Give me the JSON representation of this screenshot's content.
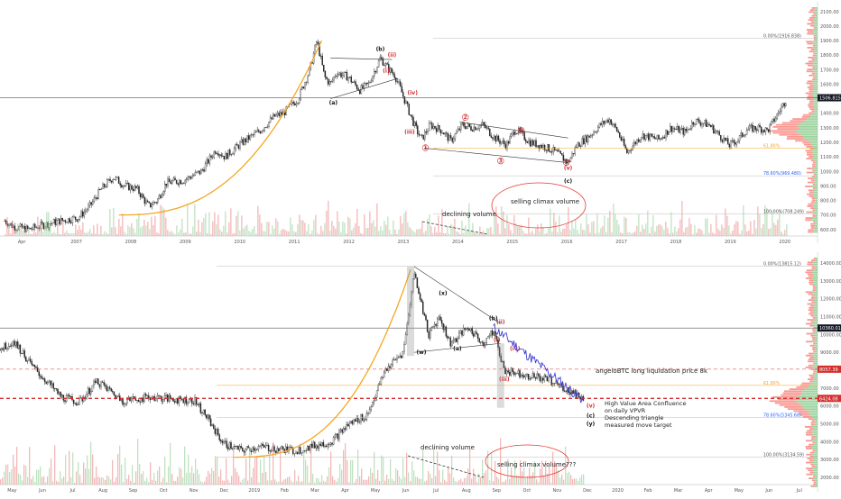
{
  "colors": {
    "up": "#26a69a",
    "down": "#ef5350",
    "candle": "#222222",
    "ma": "#f5a623",
    "projection": "#3f3fd6",
    "level_line": "#d32f2f",
    "price_tag": "#131722",
    "price_tag_red": "#d32f2f",
    "fib": "#2962ff",
    "fib_orange": "#f5a623",
    "ellipse": "#e53935",
    "vp_red": "#f44336",
    "vp_green": "#4caf50"
  },
  "chart_data": [
    {
      "type": "candlestick",
      "asset": "Gold",
      "x_axis": {
        "labels": [
          "Apr",
          "2007",
          "2008",
          "2009",
          "2010",
          "2011",
          "2012",
          "2013",
          "2014",
          "2015",
          "2016",
          "2017",
          "2018",
          "2019",
          "2020"
        ],
        "range": [
          2006.27,
          2020.2
        ]
      },
      "y_axis": {
        "labels": [
          "600.00",
          "700.00",
          "800.00",
          "900.00",
          "1000.00",
          "1100.00",
          "1200.00",
          "1300.00",
          "1400.00",
          "1500.00",
          "1600.00",
          "1700.00",
          "1800.00",
          "1900.00",
          "2000.00",
          "2100.00"
        ],
        "range": [
          580,
          2130
        ]
      },
      "current_price": "1506.815",
      "fib_levels": [
        {
          "label": "0.00%(1916.838)",
          "value": 1916.838
        },
        {
          "label": "61.80%",
          "value": 1160
        },
        {
          "label": "78.60%(969.480)",
          "value": 969.48
        },
        {
          "label": "100.00%(708.249)",
          "value": 708.249
        }
      ],
      "path": [
        [
          2006.35,
          660
        ],
        [
          2006.5,
          620
        ],
        [
          2006.75,
          600
        ],
        [
          2007.0,
          630
        ],
        [
          2007.3,
          660
        ],
        [
          2007.6,
          680
        ],
        [
          2007.8,
          760
        ],
        [
          2008.0,
          880
        ],
        [
          2008.2,
          960
        ],
        [
          2008.4,
          900
        ],
        [
          2008.6,
          880
        ],
        [
          2008.8,
          760
        ],
        [
          2008.95,
          800
        ],
        [
          2009.1,
          920
        ],
        [
          2009.4,
          940
        ],
        [
          2009.7,
          1000
        ],
        [
          2009.95,
          1150
        ],
        [
          2010.1,
          1100
        ],
        [
          2010.4,
          1200
        ],
        [
          2010.7,
          1280
        ],
        [
          2010.95,
          1380
        ],
        [
          2011.1,
          1400
        ],
        [
          2011.35,
          1500
        ],
        [
          2011.55,
          1700
        ],
        [
          2011.67,
          1900
        ],
        [
          2011.8,
          1650
        ],
        [
          2011.9,
          1600
        ],
        [
          2012.0,
          1680
        ],
        [
          2012.2,
          1650
        ],
        [
          2012.4,
          1560
        ],
        [
          2012.55,
          1600
        ],
        [
          2012.75,
          1780
        ],
        [
          2012.9,
          1700
        ],
        [
          2013.0,
          1660
        ],
        [
          2013.1,
          1560
        ],
        [
          2013.25,
          1400
        ],
        [
          2013.35,
          1300
        ],
        [
          2013.45,
          1220
        ],
        [
          2013.6,
          1320
        ],
        [
          2013.8,
          1280
        ],
        [
          2013.95,
          1210
        ],
        [
          2014.15,
          1320
        ],
        [
          2014.3,
          1300
        ],
        [
          2014.5,
          1320
        ],
        [
          2014.7,
          1230
        ],
        [
          2014.9,
          1180
        ],
        [
          2015.05,
          1290
        ],
        [
          2015.3,
          1200
        ],
        [
          2015.55,
          1170
        ],
        [
          2015.75,
          1130
        ],
        [
          2015.95,
          1060
        ],
        [
          2016.1,
          1180
        ],
        [
          2016.3,
          1240
        ],
        [
          2016.5,
          1320
        ],
        [
          2016.65,
          1360
        ],
        [
          2016.8,
          1270
        ],
        [
          2016.95,
          1130
        ],
        [
          2017.2,
          1250
        ],
        [
          2017.5,
          1220
        ],
        [
          2017.7,
          1300
        ],
        [
          2017.95,
          1270
        ],
        [
          2018.1,
          1350
        ],
        [
          2018.35,
          1320
        ],
        [
          2018.6,
          1220
        ],
        [
          2018.7,
          1180
        ],
        [
          2018.85,
          1220
        ],
        [
          2019.0,
          1290
        ],
        [
          2019.2,
          1300
        ],
        [
          2019.35,
          1280
        ],
        [
          2019.5,
          1380
        ],
        [
          2019.6,
          1450
        ],
        [
          2019.67,
          1500
        ]
      ],
      "wave_labels": [
        {
          "text": "(b)",
          "x": 2012.75,
          "y": 1830,
          "color": "black"
        },
        {
          "text": "(a)",
          "x": 2011.95,
          "y": 1460,
          "color": "black"
        },
        {
          "text": "(c)",
          "x": 2015.95,
          "y": 920,
          "color": "black"
        },
        {
          "text": "(ii)",
          "x": 2012.95,
          "y": 1790,
          "color": "red"
        },
        {
          "text": "(i)",
          "x": 2012.85,
          "y": 1680,
          "color": "red"
        },
        {
          "text": "(iv)",
          "x": 2013.3,
          "y": 1530,
          "color": "red"
        },
        {
          "text": "(iii)",
          "x": 2013.25,
          "y": 1260,
          "color": "red"
        },
        {
          "text": "(v)",
          "x": 2015.95,
          "y": 1010,
          "color": "red"
        },
        {
          "text": "1",
          "x": 2013.52,
          "y": 1150,
          "color": "red",
          "circle": true
        },
        {
          "text": "2",
          "x": 2014.2,
          "y": 1360,
          "color": "red",
          "circle": true
        },
        {
          "text": "3",
          "x": 2014.8,
          "y": 1060,
          "color": "red",
          "circle": true
        },
        {
          "text": "4",
          "x": 2015.15,
          "y": 1270,
          "color": "red",
          "circle": true
        },
        {
          "text": "5",
          "x": 2015.92,
          "y": 1050,
          "color": "red",
          "circle": true
        }
      ],
      "annotations": [
        "declining volume",
        "selling climax volume"
      ]
    },
    {
      "type": "candlestick",
      "asset": "BTC",
      "x_axis": {
        "labels": [
          "May",
          "Jun",
          "Jul",
          "Aug",
          "Sep",
          "Oct",
          "Nov",
          "Dec",
          "2019",
          "Feb",
          "Mar",
          "Apr",
          "May",
          "Jun",
          "Jul",
          "Aug",
          "Sep",
          "Oct",
          "Nov",
          "Dec",
          "2020",
          "Feb",
          "Mar",
          "Apr",
          "May",
          "Jun",
          "Jul"
        ],
        "range": [
          2018.33,
          2020.6
        ]
      },
      "y_axis": {
        "labels": [
          "2000.00",
          "3000.00",
          "4000.00",
          "5000.00",
          "6000.00",
          "7000.00",
          "8000.00",
          "9000.00",
          "10000.00",
          "11000.00",
          "12000.00",
          "13000.00",
          "14000.00"
        ],
        "range": [
          1500,
          14300
        ]
      },
      "current_price": "10360.01",
      "levels": [
        {
          "label": "8057.39",
          "value": 8057.39,
          "style": "dashed-red-thin"
        },
        {
          "label": "6424.08",
          "value": 6424.08,
          "style": "dashed-red-thick"
        }
      ],
      "fib_levels": [
        {
          "label": "0.00%(13815.12)",
          "value": 13815.12
        },
        {
          "label": "61.80%",
          "value": 7150
        },
        {
          "label": "78.60%(5345.68)",
          "value": 5345.68
        },
        {
          "label": "100.00%(3134.59)",
          "value": 3134.59
        }
      ],
      "path": [
        [
          2018.33,
          9200
        ],
        [
          2018.37,
          9600
        ],
        [
          2018.42,
          8200
        ],
        [
          2018.5,
          6500
        ],
        [
          2018.55,
          6200
        ],
        [
          2018.6,
          7400
        ],
        [
          2018.67,
          6300
        ],
        [
          2018.75,
          6500
        ],
        [
          2018.8,
          6400
        ],
        [
          2018.87,
          6300
        ],
        [
          2018.9,
          5500
        ],
        [
          2018.95,
          3900
        ],
        [
          2019.0,
          3500
        ],
        [
          2019.05,
          3700
        ],
        [
          2019.15,
          3500
        ],
        [
          2019.25,
          4000
        ],
        [
          2019.3,
          5000
        ],
        [
          2019.35,
          5500
        ],
        [
          2019.4,
          8000
        ],
        [
          2019.45,
          9000
        ],
        [
          2019.48,
          13500
        ],
        [
          2019.52,
          10000
        ],
        [
          2019.55,
          11000
        ],
        [
          2019.58,
          9500
        ],
        [
          2019.63,
          10400
        ],
        [
          2019.67,
          9500
        ],
        [
          2019.7,
          10200
        ],
        [
          2019.73,
          8000
        ],
        [
          2019.85,
          7500
        ],
        [
          2019.95,
          6424
        ]
      ],
      "wave_labels": [
        {
          "text": "(x)",
          "x": 2019.56,
          "y": 12200,
          "color": "black"
        },
        {
          "text": "(b)",
          "x": 2019.7,
          "y": 10800,
          "color": "black"
        },
        {
          "text": "(w)",
          "x": 2019.5,
          "y": 8900,
          "color": "black"
        },
        {
          "text": "(a)",
          "x": 2019.6,
          "y": 9100,
          "color": "black"
        },
        {
          "text": "(ii)",
          "x": 2019.72,
          "y": 10600,
          "color": "red"
        },
        {
          "text": "(i)",
          "x": 2019.71,
          "y": 9600,
          "color": "red"
        },
        {
          "text": "(iv)",
          "x": 2019.76,
          "y": 9100,
          "color": "red"
        },
        {
          "text": "(iii)",
          "x": 2019.73,
          "y": 7400,
          "color": "red"
        },
        {
          "text": "(v)",
          "x": 2019.97,
          "y": 5900,
          "color": "red"
        },
        {
          "text": "(c)",
          "x": 2019.97,
          "y": 5350,
          "color": "black"
        },
        {
          "text": "(y)",
          "x": 2019.97,
          "y": 4900,
          "color": "black"
        }
      ],
      "annotations": [
        "angeloBTC long liquidation price 8k",
        "High Value Area Confluence",
        "on daily VPVR",
        "Descending triangle",
        "measured move target",
        "declining volume",
        "selling climax volume???"
      ]
    }
  ]
}
